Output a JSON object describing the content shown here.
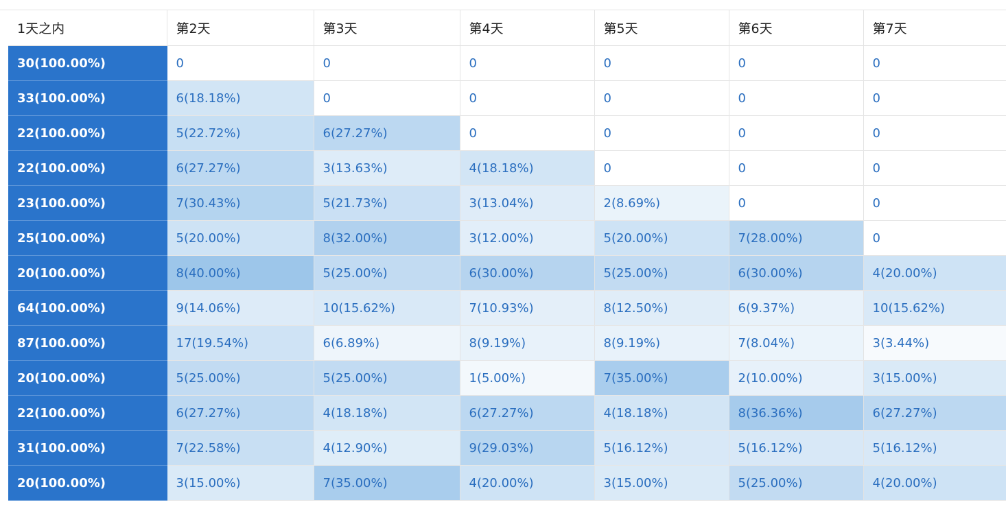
{
  "table": {
    "headers": [
      "1天之内",
      "第2天",
      "第3天",
      "第4天",
      "第5天",
      "第6天",
      "第7天"
    ],
    "rows": [
      {
        "cells": [
          "30(100.00%)",
          "0",
          "0",
          "0",
          "0",
          "0",
          "0"
        ],
        "pct": [
          1,
          0,
          0,
          0,
          0,
          0,
          0
        ]
      },
      {
        "cells": [
          "33(100.00%)",
          "6(18.18%)",
          "0",
          "0",
          "0",
          "0",
          "0"
        ],
        "pct": [
          1,
          0.1818,
          0,
          0,
          0,
          0,
          0
        ]
      },
      {
        "cells": [
          "22(100.00%)",
          "5(22.72%)",
          "6(27.27%)",
          "0",
          "0",
          "0",
          "0"
        ],
        "pct": [
          1,
          0.2272,
          0.2727,
          0,
          0,
          0,
          0
        ]
      },
      {
        "cells": [
          "22(100.00%)",
          "6(27.27%)",
          "3(13.63%)",
          "4(18.18%)",
          "0",
          "0",
          "0"
        ],
        "pct": [
          1,
          0.2727,
          0.1363,
          0.1818,
          0,
          0,
          0
        ]
      },
      {
        "cells": [
          "23(100.00%)",
          "7(30.43%)",
          "5(21.73%)",
          "3(13.04%)",
          "2(8.69%)",
          "0",
          "0"
        ],
        "pct": [
          1,
          0.3043,
          0.2173,
          0.1304,
          0.0869,
          0,
          0
        ]
      },
      {
        "cells": [
          "25(100.00%)",
          "5(20.00%)",
          "8(32.00%)",
          "3(12.00%)",
          "5(20.00%)",
          "7(28.00%)",
          "0"
        ],
        "pct": [
          1,
          0.2,
          0.32,
          0.12,
          0.2,
          0.28,
          0
        ]
      },
      {
        "cells": [
          "20(100.00%)",
          "8(40.00%)",
          "5(25.00%)",
          "6(30.00%)",
          "5(25.00%)",
          "6(30.00%)",
          "4(20.00%)"
        ],
        "pct": [
          1,
          0.4,
          0.25,
          0.3,
          0.25,
          0.3,
          0.2
        ]
      },
      {
        "cells": [
          "64(100.00%)",
          "9(14.06%)",
          "10(15.62%)",
          "7(10.93%)",
          "8(12.50%)",
          "6(9.37%)",
          "10(15.62%)"
        ],
        "pct": [
          1,
          0.1406,
          0.1562,
          0.1093,
          0.125,
          0.0937,
          0.1562
        ]
      },
      {
        "cells": [
          "87(100.00%)",
          "17(19.54%)",
          "6(6.89%)",
          "8(9.19%)",
          "8(9.19%)",
          "7(8.04%)",
          "3(3.44%)"
        ],
        "pct": [
          1,
          0.1954,
          0.0689,
          0.0919,
          0.0919,
          0.0804,
          0.0344
        ]
      },
      {
        "cells": [
          "20(100.00%)",
          "5(25.00%)",
          "5(25.00%)",
          "1(5.00%)",
          "7(35.00%)",
          "2(10.00%)",
          "3(15.00%)"
        ],
        "pct": [
          1,
          0.25,
          0.25,
          0.05,
          0.35,
          0.1,
          0.15
        ]
      },
      {
        "cells": [
          "22(100.00%)",
          "6(27.27%)",
          "4(18.18%)",
          "6(27.27%)",
          "4(18.18%)",
          "8(36.36%)",
          "6(27.27%)"
        ],
        "pct": [
          1,
          0.2727,
          0.1818,
          0.2727,
          0.1818,
          0.3636,
          0.2727
        ]
      },
      {
        "cells": [
          "31(100.00%)",
          "7(22.58%)",
          "4(12.90%)",
          "9(29.03%)",
          "5(16.12%)",
          "5(16.12%)",
          "5(16.12%)"
        ],
        "pct": [
          1,
          0.2258,
          0.129,
          0.2903,
          0.1612,
          0.1612,
          0.1612
        ]
      },
      {
        "cells": [
          "20(100.00%)",
          "3(15.00%)",
          "7(35.00%)",
          "4(20.00%)",
          "3(15.00%)",
          "5(25.00%)",
          "4(20.00%)"
        ],
        "pct": [
          1,
          0.15,
          0.35,
          0.2,
          0.15,
          0.25,
          0.2
        ]
      }
    ]
  },
  "colors": {
    "first_column": "#2a74cb",
    "cell_text": "#2a6ebf",
    "heat_low": "#ffffff",
    "heat_high": "#9dc6ea"
  }
}
